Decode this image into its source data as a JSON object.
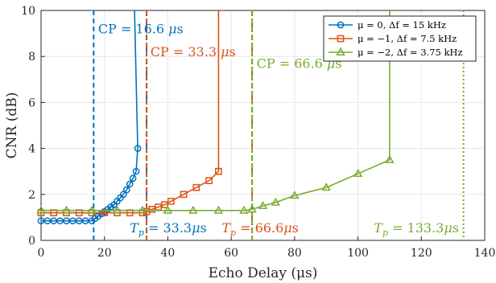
{
  "chart_data": {
    "type": "line",
    "xlabel": "Echo Delay (μs)",
    "ylabel": "CNR (dB)",
    "xlim": [
      0,
      140
    ],
    "ylim": [
      0,
      10
    ],
    "xticks": [
      0,
      20,
      40,
      60,
      80,
      100,
      120,
      140
    ],
    "yticks": [
      0,
      2,
      4,
      6,
      8,
      10
    ],
    "grid": true,
    "legend_position": "top-right",
    "series": [
      {
        "name": "μ = 0, Δf = 15 kHz",
        "color": "#0072BD",
        "marker": "circle",
        "x": [
          0,
          2,
          4,
          6,
          8,
          10,
          12,
          14,
          16,
          17,
          18,
          19,
          20,
          21,
          22,
          23,
          24,
          25,
          26,
          27,
          28,
          29,
          30,
          30.5
        ],
        "y": [
          0.85,
          0.85,
          0.85,
          0.85,
          0.85,
          0.85,
          0.85,
          0.85,
          0.85,
          0.95,
          1.05,
          1.15,
          1.25,
          1.35,
          1.45,
          1.55,
          1.7,
          1.85,
          2.0,
          2.2,
          2.45,
          2.7,
          3.0,
          4.0
        ],
        "asymptote_x": 29.5
      },
      {
        "name": "μ = −1, Δf = 7.5 kHz",
        "color": "#D95319",
        "marker": "square",
        "x": [
          0,
          4,
          8,
          12,
          16,
          20,
          24,
          28,
          32,
          33.3,
          35,
          37,
          39,
          41,
          45,
          49,
          53,
          56
        ],
        "y": [
          1.2,
          1.2,
          1.2,
          1.2,
          1.2,
          1.2,
          1.2,
          1.2,
          1.2,
          1.25,
          1.35,
          1.45,
          1.55,
          1.7,
          2.0,
          2.3,
          2.6,
          3.0
        ],
        "asymptote_x": 56
      },
      {
        "name": "μ = −2, Δf = 3.75 kHz",
        "color": "#77AC30",
        "marker": "triangle",
        "x": [
          0,
          8,
          16,
          24,
          32,
          40,
          48,
          56,
          64,
          66.6,
          70,
          74,
          80,
          90,
          100,
          110
        ],
        "y": [
          1.3,
          1.3,
          1.3,
          1.3,
          1.3,
          1.3,
          1.3,
          1.3,
          1.3,
          1.35,
          1.5,
          1.65,
          1.95,
          2.3,
          2.9,
          3.5
        ],
        "asymptote_x": 110
      }
    ],
    "vlines": [
      {
        "x": 16.6,
        "color": "#0072BD",
        "style": "dashed"
      },
      {
        "x": 33.3,
        "color": "#0072BD",
        "style": "dashdot"
      },
      {
        "x": 33.3,
        "color": "#D95319",
        "style": "dashed"
      },
      {
        "x": 66.6,
        "color": "#D95319",
        "style": "dashdot"
      },
      {
        "x": 66.6,
        "color": "#77AC30",
        "style": "dashed"
      },
      {
        "x": 133.3,
        "color": "#77AC30",
        "style": "dotted"
      }
    ],
    "annotations": [
      {
        "parts": [
          "CP = 16.6 ",
          "μ",
          "s"
        ],
        "color": "#0072BD",
        "x": 18,
        "y": 9.0
      },
      {
        "parts": [
          "CP = 33.3 ",
          "μ",
          "s"
        ],
        "color": "#D95319",
        "x": 34.5,
        "y": 8.0
      },
      {
        "parts": [
          "CP = 66.6 ",
          "μ",
          "s"
        ],
        "color": "#77AC30",
        "x": 68,
        "y": 7.5
      },
      {
        "parts": [
          "T",
          "p",
          " = 33.3",
          "μ",
          "s"
        ],
        "color": "#0072BD",
        "x": 28,
        "y": 0.35
      },
      {
        "parts": [
          "T",
          "p",
          " = 66.6",
          "μ",
          "s"
        ],
        "color": "#D95319",
        "x": 57,
        "y": 0.35
      },
      {
        "parts": [
          "T",
          "p",
          " = 133.3",
          "μ",
          "s"
        ],
        "color": "#77AC30",
        "x": 105,
        "y": 0.35
      }
    ]
  }
}
